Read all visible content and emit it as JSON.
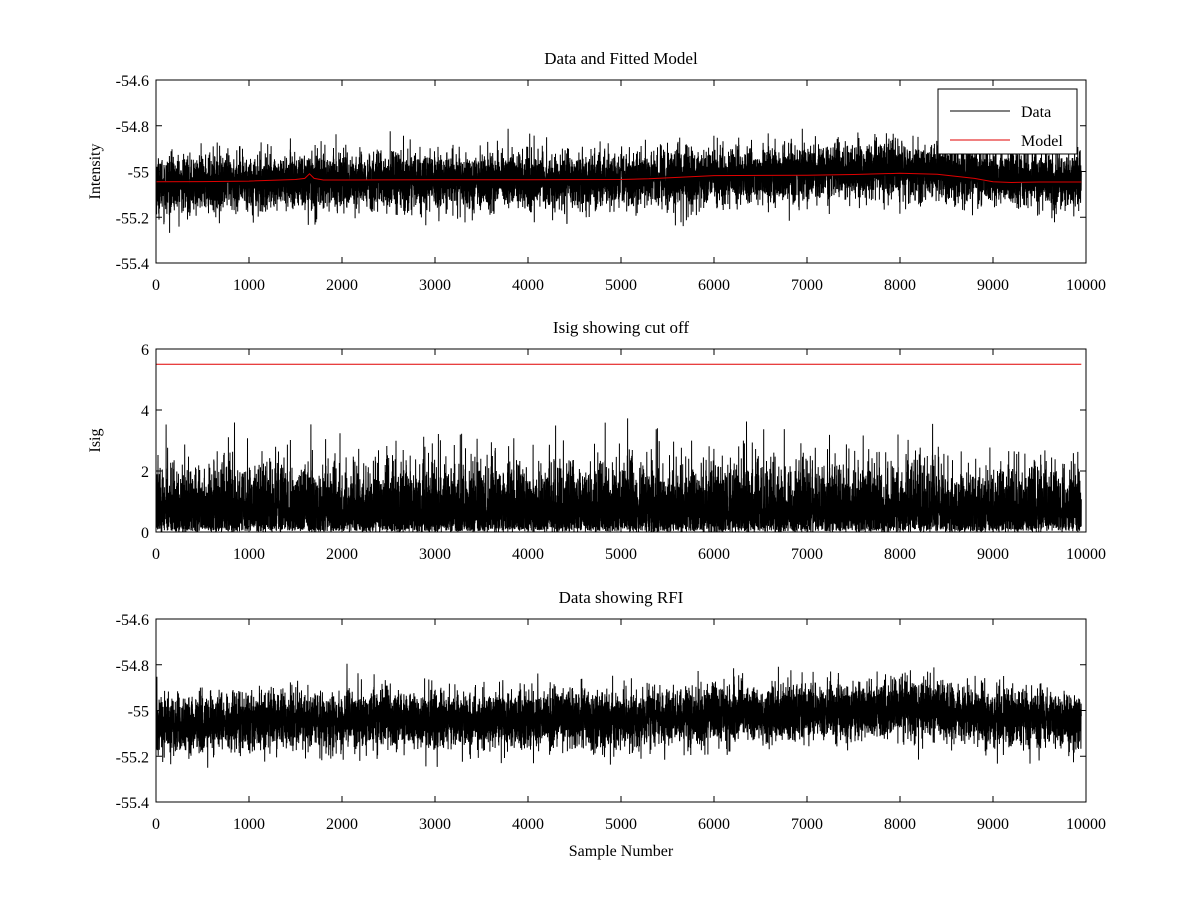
{
  "chart_data": [
    {
      "type": "line",
      "title": "Data and Fitted Model",
      "xlabel": "",
      "ylabel": "Intensity",
      "xlim": [
        0,
        10000
      ],
      "ylim": [
        -55.4,
        -54.6
      ],
      "xticks": [
        "0",
        "1000",
        "2000",
        "3000",
        "4000",
        "5000",
        "6000",
        "7000",
        "8000",
        "9000",
        "10000"
      ],
      "yticks": [
        "-54.6",
        "-54.8",
        "-55",
        "-55.2",
        "-55.4"
      ],
      "grid": false,
      "legend": "top-right",
      "series": [
        {
          "name": "Data",
          "color": "#000000",
          "description": "dense noisy signal",
          "trend_x": [
            0,
            1000,
            2000,
            3000,
            4000,
            5000,
            6000,
            7000,
            7500,
            8000,
            8500,
            9000,
            9500,
            9950
          ],
          "trend_y": [
            -55.06,
            -55.05,
            -55.04,
            -55.04,
            -55.04,
            -55.04,
            -55.02,
            -55.01,
            -55.0,
            -54.99,
            -55.0,
            -55.03,
            -55.04,
            -55.04
          ],
          "amplitude": 0.1,
          "n_points": 9950
        },
        {
          "name": "Model",
          "color": "#e00000",
          "x": [
            0,
            500,
            1000,
            1500,
            1600,
            1650,
            1700,
            1800,
            2000,
            3000,
            4000,
            5000,
            5300,
            6000,
            7000,
            7500,
            8000,
            8400,
            8800,
            9000,
            9200,
            9500,
            9950
          ],
          "y": [
            -55.045,
            -55.044,
            -55.042,
            -55.035,
            -55.03,
            -55.01,
            -55.03,
            -55.037,
            -55.037,
            -55.036,
            -55.036,
            -55.035,
            -55.032,
            -55.018,
            -55.016,
            -55.013,
            -55.008,
            -55.012,
            -55.03,
            -55.045,
            -55.048,
            -55.046,
            -55.046
          ]
        }
      ]
    },
    {
      "type": "line",
      "title": "Isig showing cut off",
      "xlabel": "",
      "ylabel": "Isig",
      "xlim": [
        0,
        10000
      ],
      "ylim": [
        0,
        6
      ],
      "xticks": [
        "0",
        "1000",
        "2000",
        "3000",
        "4000",
        "5000",
        "6000",
        "7000",
        "8000",
        "9000",
        "10000"
      ],
      "yticks": [
        "0",
        "2",
        "4",
        "6"
      ],
      "grid": false,
      "series": [
        {
          "color": "#000000",
          "description": "absolute deviation, mostly 0-2.5 with spikes to ~3.8",
          "baseline": 0.8,
          "amplitude": 1.0,
          "n_points": 9950
        },
        {
          "color": "#e00000",
          "description": "cut-off threshold",
          "x": [
            0,
            9950
          ],
          "y": [
            5.5,
            5.5
          ]
        }
      ]
    },
    {
      "type": "line",
      "title": "Data showing RFI",
      "xlabel": "Sample Number",
      "ylabel": "",
      "xlim": [
        0,
        10000
      ],
      "ylim": [
        -55.4,
        -54.6
      ],
      "xticks": [
        "0",
        "1000",
        "2000",
        "3000",
        "4000",
        "5000",
        "6000",
        "7000",
        "8000",
        "9000",
        "10000"
      ],
      "yticks": [
        "-54.6",
        "-54.8",
        "-55",
        "-55.2",
        "-55.4"
      ],
      "grid": false,
      "series": [
        {
          "color": "#000000",
          "description": "same dense signal as top panel",
          "trend_x": [
            0,
            1000,
            2000,
            3000,
            4000,
            5000,
            6000,
            7000,
            7500,
            8000,
            8500,
            9000,
            9500,
            9950
          ],
          "trend_y": [
            -55.06,
            -55.05,
            -55.04,
            -55.04,
            -55.04,
            -55.04,
            -55.02,
            -55.01,
            -55.0,
            -54.99,
            -55.0,
            -55.03,
            -55.04,
            -55.04
          ],
          "amplitude": 0.1,
          "n_points": 9950
        }
      ]
    }
  ]
}
